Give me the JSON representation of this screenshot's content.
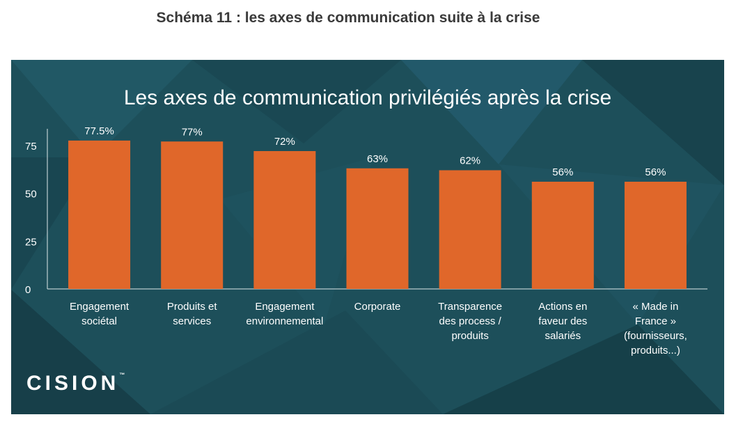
{
  "caption": "Schéma 11 : les axes de communication suite à la crise",
  "brand": {
    "logo_text": "CISION",
    "accent": "#e0672a",
    "background": "#1d4f5a"
  },
  "chart_data": {
    "type": "bar",
    "title": "Les axes de communication privilégiés après la crise",
    "xlabel": "",
    "ylabel": "",
    "ylim": [
      0,
      80
    ],
    "yticks": [
      "0",
      "25",
      "50",
      "75"
    ],
    "grid": false,
    "legend": "none",
    "bar_color": "#e0672a",
    "categories": [
      [
        "Engagement",
        "sociétal"
      ],
      [
        "Produits et",
        "services"
      ],
      [
        "Engagement",
        "environnemental"
      ],
      [
        "Corporate"
      ],
      [
        "Transparence",
        "des process /",
        "produits"
      ],
      [
        "Actions en",
        "faveur des",
        "salariés"
      ],
      [
        "« Made in",
        "France »",
        "(fournisseurs,",
        "produits...)"
      ]
    ],
    "values": [
      77.5,
      77,
      72,
      63,
      62,
      56,
      56
    ],
    "value_labels": [
      "77.5%",
      "77%",
      "72%",
      "63%",
      "62%",
      "56%",
      "56%"
    ]
  }
}
